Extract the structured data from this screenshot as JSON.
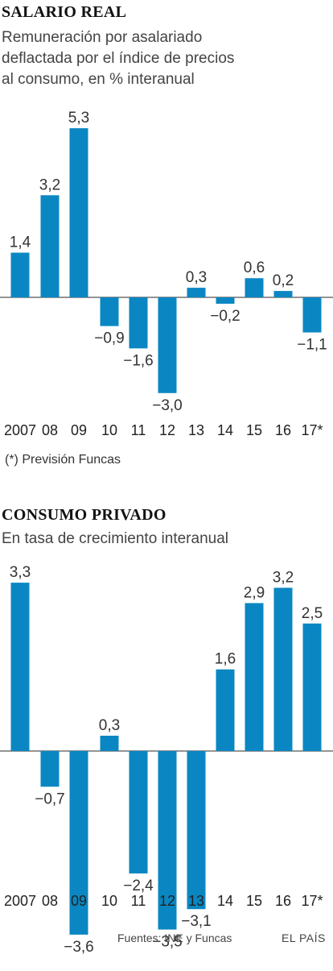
{
  "accent_color": "#0a87c2",
  "zero_line_color": "#555555",
  "chart_data": [
    {
      "type": "bar",
      "title": "SALARIO REAL",
      "subtitle": [
        "Remuneración por asalariado",
        "deflactada por el índice de precios",
        "al consumo, en % interanual"
      ],
      "categories": [
        "2007",
        "08",
        "09",
        "10",
        "11",
        "12",
        "13",
        "14",
        "15",
        "16",
        "17*"
      ],
      "values": [
        1.4,
        3.2,
        5.3,
        -0.9,
        -1.6,
        -3.0,
        0.3,
        -0.2,
        0.6,
        0.2,
        -1.1
      ],
      "value_labels": [
        "1,4",
        "3,2",
        "5,3",
        "−0,9",
        "−1,6",
        "−3,0",
        "0,3",
        "−0,2",
        "0,6",
        "0,2",
        "−1,1"
      ],
      "note": "(*) Previsión Funcas"
    },
    {
      "type": "bar",
      "title": "CONSUMO PRIVADO",
      "subtitle": [
        "En tasa de crecimiento interanual"
      ],
      "categories": [
        "2007",
        "08",
        "09",
        "10",
        "11",
        "12",
        "13",
        "14",
        "15",
        "16",
        "17*"
      ],
      "values": [
        3.3,
        -0.7,
        -3.6,
        0.3,
        -2.4,
        -3.5,
        -3.1,
        1.6,
        2.9,
        3.2,
        2.5
      ],
      "value_labels": [
        "3,3",
        "−0,7",
        "−3,6",
        "0,3",
        "−2,4",
        "−3,5",
        "−3,1",
        "1,6",
        "2,9",
        "3,2",
        "2,5"
      ]
    }
  ],
  "footer": {
    "source": "Fuentes: INE y Funcas",
    "brand": "EL PAÍS"
  }
}
